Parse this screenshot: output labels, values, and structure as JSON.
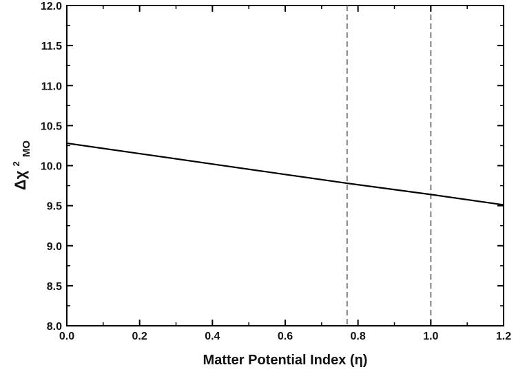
{
  "chart_data": {
    "type": "line",
    "xlabel": "Matter Potential Index (η)",
    "ylabel": {
      "prefix": "Δχ",
      "superscript": "2",
      "subscript": "MO"
    },
    "xlim": [
      0.0,
      1.2
    ],
    "ylim": [
      8.0,
      12.0
    ],
    "x_ticks": [
      "0.0",
      "0.2",
      "0.4",
      "0.6",
      "0.8",
      "1.0",
      "1.2"
    ],
    "y_ticks": [
      "8.0",
      "8.5",
      "9.0",
      "9.5",
      "10.0",
      "10.5",
      "11.0",
      "11.5",
      "12.0"
    ],
    "grid": false,
    "series": [
      {
        "color": "#000000",
        "x": [
          0.0,
          0.2,
          0.4,
          0.6,
          0.77,
          1.0,
          1.2
        ],
        "y": [
          10.28,
          10.15,
          10.02,
          9.89,
          9.78,
          9.64,
          9.51
        ]
      }
    ],
    "reference_lines": [
      {
        "x": 0.77,
        "style": "dashed",
        "color": "#808080"
      },
      {
        "x": 1.0,
        "style": "dashed",
        "color": "#808080"
      }
    ]
  }
}
